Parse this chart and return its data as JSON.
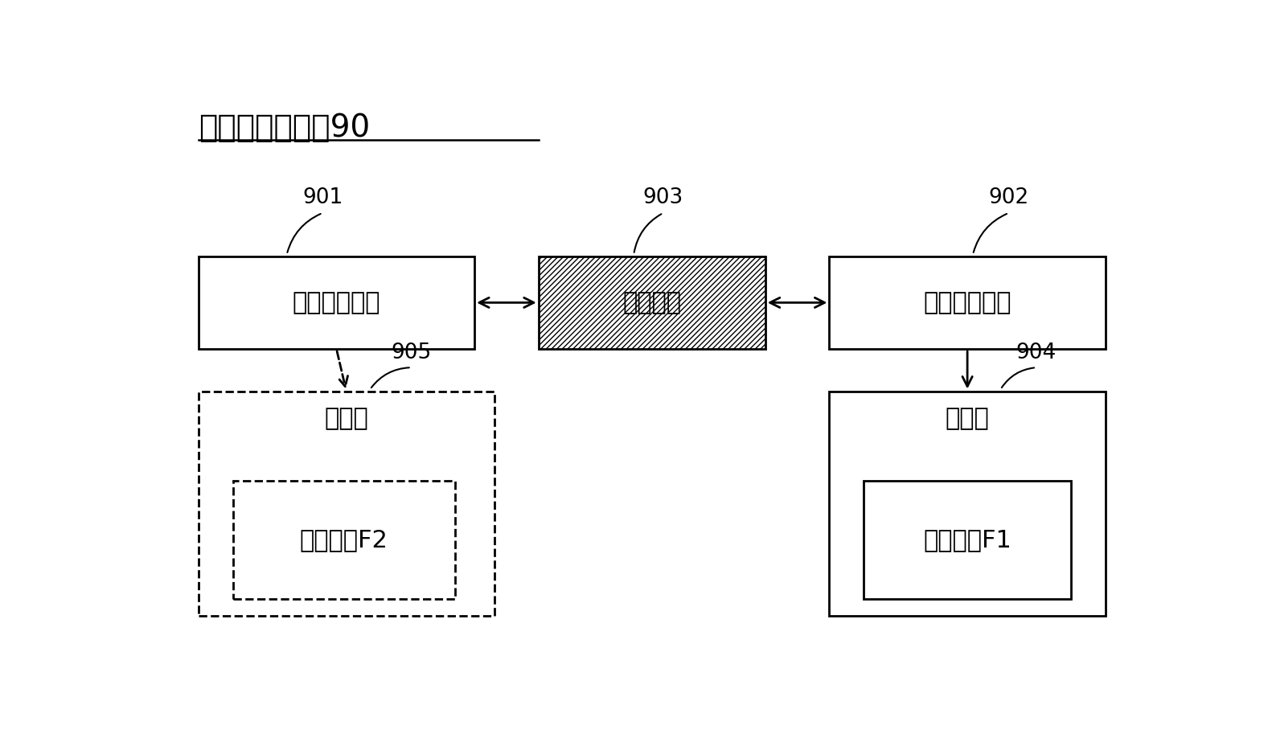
{
  "title": "元数据共享系统90",
  "bg_color": "#ffffff",
  "b901": [
    0.04,
    0.535,
    0.28,
    0.165
  ],
  "b902": [
    0.68,
    0.535,
    0.28,
    0.165
  ],
  "b903": [
    0.385,
    0.535,
    0.23,
    0.165
  ],
  "b904": [
    0.68,
    0.06,
    0.28,
    0.4
  ],
  "b904i": [
    0.715,
    0.09,
    0.21,
    0.21
  ],
  "b905": [
    0.04,
    0.06,
    0.3,
    0.4
  ],
  "b905i": [
    0.075,
    0.09,
    0.225,
    0.21
  ],
  "label_901": "第一计算设备",
  "label_902": "第二计算设备",
  "label_903": "元数据流",
  "label_904_outer": "存储盘",
  "label_904_inner": "文件系统F1",
  "label_905_outer": "存储盘",
  "label_905_inner": "文件系统F2",
  "font_size_title": 28,
  "font_size_box": 22,
  "font_size_num": 19
}
